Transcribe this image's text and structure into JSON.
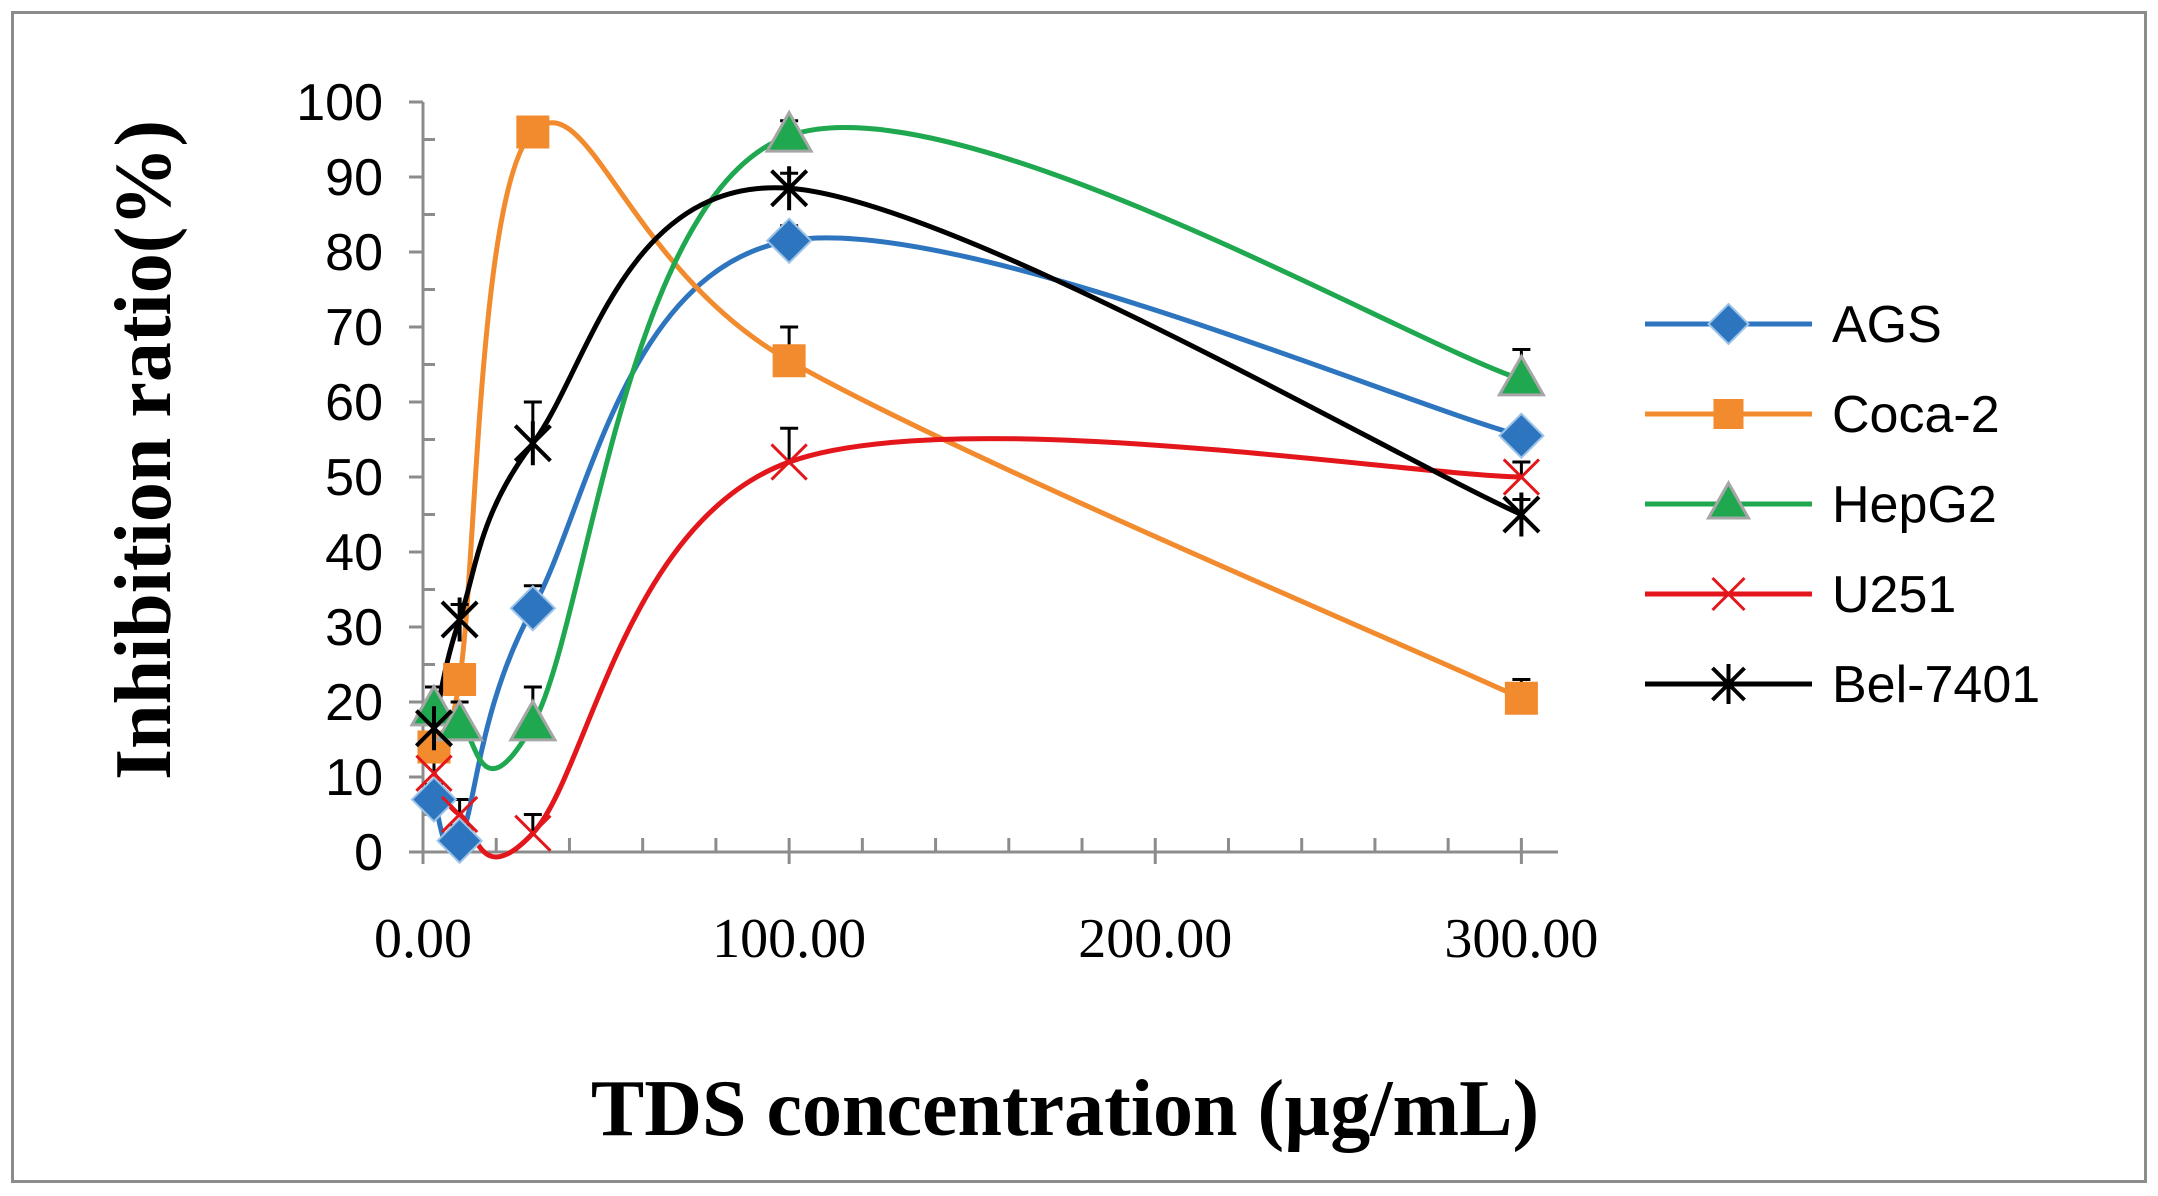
{
  "chart_data": {
    "type": "scatter",
    "title": "",
    "xlabel": "TDS concentration (µg/mL)",
    "ylabel": "Inhibition ratio(%)",
    "xlim": [
      0,
      310
    ],
    "ylim": [
      0,
      100
    ],
    "xticks": [
      0,
      100,
      200,
      300
    ],
    "xtick_labels": [
      "0.00",
      "100.00",
      "200.00",
      "300.00"
    ],
    "yticks": [
      0,
      10,
      20,
      30,
      40,
      50,
      60,
      70,
      80,
      90,
      100
    ],
    "ytick_labels": [
      "0",
      "10",
      "20",
      "30",
      "40",
      "50",
      "60",
      "70",
      "80",
      "90",
      "100"
    ],
    "x_minor_step": 20,
    "y_minor_step": 5,
    "smooth": true,
    "legend_position": "right",
    "series": [
      {
        "name": "AGS",
        "color": "#2E75C0",
        "marker": "diamond",
        "x": [
          3,
          10,
          30,
          100,
          300
        ],
        "y": [
          7,
          1.5,
          32.5,
          81.5,
          55.5
        ],
        "err": [
          2,
          2,
          3,
          2,
          1.5
        ]
      },
      {
        "name": "Coca-2",
        "color": "#F28A2E",
        "marker": "square",
        "x": [
          3,
          10,
          30,
          100,
          300
        ],
        "y": [
          14,
          23,
          96,
          65.5,
          20.5
        ],
        "err": [
          3,
          2,
          2,
          4.5,
          2.5
        ]
      },
      {
        "name": "HepG2",
        "color": "#1FA84F",
        "marker": "triangle",
        "x": [
          3,
          10,
          30,
          100,
          300
        ],
        "y": [
          19,
          17,
          17,
          95.5,
          63
        ],
        "err": [
          3,
          3,
          5,
          2,
          4
        ]
      },
      {
        "name": "U251",
        "color": "#E3171B",
        "marker": "x",
        "x": [
          3,
          10,
          30,
          100,
          300
        ],
        "y": [
          10.5,
          5,
          2.5,
          52,
          50
        ],
        "err": [
          2,
          2,
          2.5,
          4.5,
          2
        ]
      },
      {
        "name": "Bel-7401",
        "color": "#000000",
        "marker": "star",
        "x": [
          3,
          10,
          30,
          100,
          300
        ],
        "y": [
          16.5,
          31,
          54.5,
          88.5,
          45
        ],
        "err": [
          3,
          2,
          5.5,
          2,
          2
        ]
      }
    ]
  }
}
